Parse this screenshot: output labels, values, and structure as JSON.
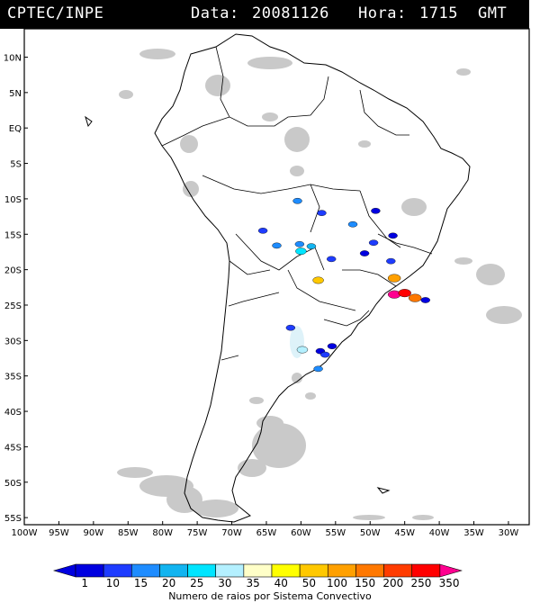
{
  "header": {
    "source": "CPTEC/INPE",
    "date_label": "Data:",
    "date_value": "20081126",
    "time_label": "Hora:",
    "time_value": "1715",
    "timezone": "GMT"
  },
  "map": {
    "projection": "lat-lon",
    "extent": {
      "lon_min": -100,
      "lon_max": -27,
      "lat_min": -56,
      "lat_max": 14
    },
    "lat_labels": [
      "10N",
      "5N",
      "EQ",
      "5S",
      "10S",
      "15S",
      "20S",
      "25S",
      "30S",
      "35S",
      "40S",
      "45S",
      "50S",
      "55S"
    ],
    "lat_values": [
      10,
      5,
      0,
      -5,
      -10,
      -15,
      -20,
      -25,
      -30,
      -35,
      -40,
      -45,
      -50,
      -55
    ],
    "lon_labels": [
      "100W",
      "95W",
      "90W",
      "85W",
      "80W",
      "75W",
      "70W",
      "65W",
      "60W",
      "55W",
      "50W",
      "45W",
      "40W",
      "35W",
      "30W"
    ],
    "lon_values": [
      -100,
      -95,
      -90,
      -85,
      -80,
      -75,
      -70,
      -65,
      -60,
      -55,
      -50,
      -45,
      -40,
      -35,
      -30
    ],
    "coastline_color": "#000000",
    "cloud_color": "#c0c0c0",
    "convective_cells": [
      {
        "lon": -60.5,
        "lat": -10.3,
        "category": 15
      },
      {
        "lon": -57.0,
        "lat": -12.0,
        "category": 10
      },
      {
        "lon": -52.5,
        "lat": -13.6,
        "category": 15
      },
      {
        "lon": -49.5,
        "lat": -16.2,
        "category": 10
      },
      {
        "lon": -46.7,
        "lat": -15.2,
        "category": 1
      },
      {
        "lon": -65.5,
        "lat": -14.5,
        "category": 10
      },
      {
        "lon": -63.5,
        "lat": -16.6,
        "category": 15
      },
      {
        "lon": -60.2,
        "lat": -16.4,
        "category": 15
      },
      {
        "lon": -60.0,
        "lat": -17.4,
        "category": 25
      },
      {
        "lon": -58.5,
        "lat": -16.7,
        "category": 20
      },
      {
        "lon": -55.6,
        "lat": -18.5,
        "category": 10
      },
      {
        "lon": -49.2,
        "lat": -11.7,
        "category": 1
      },
      {
        "lon": -50.8,
        "lat": -17.7,
        "category": 1
      },
      {
        "lon": -47.0,
        "lat": -18.8,
        "category": 10
      },
      {
        "lon": -57.5,
        "lat": -21.5,
        "category": 50
      },
      {
        "lon": -46.5,
        "lat": -21.2,
        "category": 100
      },
      {
        "lon": -46.5,
        "lat": -23.5,
        "category": 350
      },
      {
        "lon": -45.0,
        "lat": -23.3,
        "category": 250
      },
      {
        "lon": -43.5,
        "lat": -24.0,
        "category": 150
      },
      {
        "lon": -42.0,
        "lat": -24.3,
        "category": 1
      },
      {
        "lon": -61.5,
        "lat": -28.2,
        "category": 10
      },
      {
        "lon": -55.5,
        "lat": -30.8,
        "category": 1
      },
      {
        "lon": -57.2,
        "lat": -31.5,
        "category": 1
      },
      {
        "lon": -56.5,
        "lat": -32.0,
        "category": 10
      },
      {
        "lon": -57.5,
        "lat": -34.0,
        "category": 15
      },
      {
        "lon": -59.8,
        "lat": -31.3,
        "category": 30
      }
    ]
  },
  "legend": {
    "title": "Numero de raios por Sistema Convectivo",
    "labels": [
      "1",
      "10",
      "15",
      "20",
      "25",
      "30",
      "35",
      "40",
      "50",
      "100",
      "150",
      "200",
      "250",
      "350"
    ],
    "colors": [
      "#0000e0",
      "#1e3cff",
      "#1e8cff",
      "#12b4f0",
      "#00e5ff",
      "#b4f0ff",
      "#ffffc8",
      "#ffff00",
      "#ffc800",
      "#ffa000",
      "#ff7800",
      "#ff3c00",
      "#ff0000",
      "#ff0090"
    ]
  }
}
